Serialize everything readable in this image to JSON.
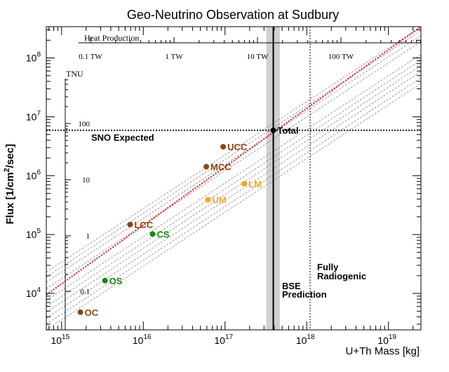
{
  "chart_data": {
    "type": "scatter",
    "title": "Geo-Neutrino Observation at Sudbury",
    "xlabel": "U+Th Mass [kg]",
    "ylabel": "Flux [1/cm²/sec]",
    "ylabel_parts": {
      "base": "Flux [1/cm",
      "sup": "2",
      "tail": "/sec]"
    },
    "x_scale": "log",
    "y_scale": "log",
    "xlim": [
      650000000000000.0,
      2.5e+19
    ],
    "ylim": [
      2400.0,
      340000000.0
    ],
    "x_ticks": [
      {
        "base": "10",
        "exp": "15"
      },
      {
        "base": "10",
        "exp": "16"
      },
      {
        "base": "10",
        "exp": "17"
      },
      {
        "base": "10",
        "exp": "18"
      },
      {
        "base": "10",
        "exp": "19"
      }
    ],
    "y_ticks": [
      {
        "base": "10",
        "exp": "4"
      },
      {
        "base": "10",
        "exp": "5"
      },
      {
        "base": "10",
        "exp": "6"
      },
      {
        "base": "10",
        "exp": "7"
      },
      {
        "base": "10",
        "exp": "8"
      }
    ],
    "heat_axis": {
      "title": "Heat Production",
      "ticks": [
        "0.1 TW",
        "1 TW",
        "10 TW",
        "100 TW"
      ]
    },
    "tnu_axis": {
      "title": "TNU",
      "ticks": [
        "0.1",
        "1",
        "10",
        "100"
      ]
    },
    "points": [
      {
        "label": "OC",
        "mass": 1700000000000000.0,
        "flux": 4800.0,
        "color": "#8b4513"
      },
      {
        "label": "OS",
        "mass": 3400000000000000.0,
        "flux": 16500.0,
        "color": "#118811"
      },
      {
        "label": "LCC",
        "mass": 6900000000000000.0,
        "flux": 148000.0,
        "color": "#8b4513"
      },
      {
        "label": "CS",
        "mass": 1.3e+16,
        "flux": 102000.0,
        "color": "#118811"
      },
      {
        "label": "UM",
        "mass": 6.2e+16,
        "flux": 390000.0,
        "color": "#f5a623"
      },
      {
        "label": "MCC",
        "mass": 5.9e+16,
        "flux": 1420000.0,
        "color": "#8b4513"
      },
      {
        "label": "UCC",
        "mass": 9.5e+16,
        "flux": 3100000.0,
        "color": "#8b4513"
      },
      {
        "label": "LM",
        "mass": 1.72e+17,
        "flux": 730000.0,
        "color": "#f5a623"
      },
      {
        "label": "Total",
        "mass": 3.9e+17,
        "flux": 5900000.0,
        "color": "#000000"
      }
    ],
    "best_fit_line": {
      "color": "#ee1111",
      "from": {
        "mass": 650000000000000.0,
        "flux": 9500.0
      },
      "to": {
        "mass": 2.5e+19,
        "flux": 340000000.0
      }
    },
    "reference_lines": [
      {
        "from_flux": 23000.0,
        "to_flux": 340000000.0
      },
      {
        "from_flux": 19000.0,
        "to_flux": 290000000.0
      },
      {
        "from_flux": 15500.0,
        "to_flux": 240000000.0
      },
      {
        "from_flux": 12000.0,
        "to_flux": 190000000.0
      },
      {
        "from_flux": 7600.0,
        "to_flux": 115000000.0
      },
      {
        "from_flux": 6000.0,
        "to_flux": 92000000.0
      },
      {
        "from_flux": 4800.0,
        "to_flux": 74000000.0
      },
      {
        "from_flux": 3800.0,
        "to_flux": 59000000.0
      },
      {
        "from_flux": 3000.0,
        "to_flux": 46000000.0
      },
      {
        "from_flux": 2400.0,
        "to_flux": 37000000.0
      }
    ],
    "sno_expected": {
      "label": "SNO Expected",
      "flux": 5900000.0
    },
    "bse_prediction": {
      "label_line1": "BSE",
      "label_line2": "Prediction",
      "mass": 3.9e+17,
      "band": [
        3.2e+17,
        4.7e+17
      ]
    },
    "fully_radiogenic": {
      "label_line1": "Fully",
      "label_line2": "Radiogenic",
      "mass": 1.1e+18
    }
  }
}
